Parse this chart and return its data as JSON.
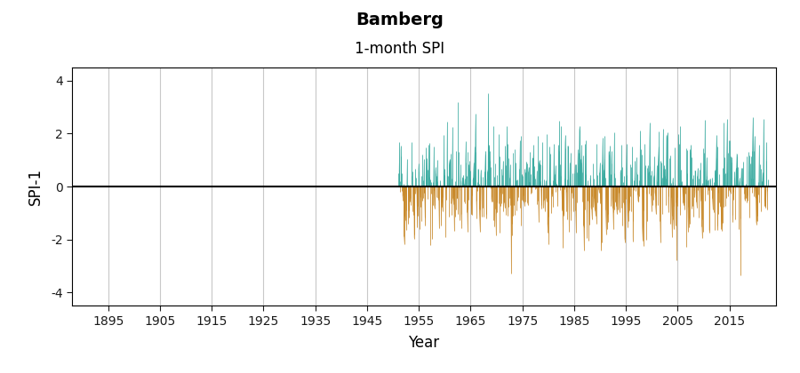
{
  "title": "Bamberg",
  "subtitle": "1-month SPI",
  "xlabel": "Year",
  "ylabel": "SPI-1",
  "xlim": [
    1888,
    2024
  ],
  "ylim": [
    -4.5,
    4.5
  ],
  "yticks": [
    -4,
    -2,
    0,
    2,
    4
  ],
  "xticks": [
    1895,
    1905,
    1915,
    1925,
    1935,
    1945,
    1955,
    1965,
    1975,
    1985,
    1995,
    2005,
    2015
  ],
  "data_start_year": 1951,
  "data_end_year": 2022,
  "color_positive": "#3aaba0",
  "color_negative": "#c8892a",
  "background_color": "#ffffff",
  "grid_color": "#c8c8c8",
  "zero_line_color": "#000000",
  "tick_color": "#1a1a1a",
  "title_fontsize": 14,
  "subtitle_fontsize": 12,
  "axis_label_fontsize": 12,
  "tick_fontsize": 10,
  "seed": 42
}
